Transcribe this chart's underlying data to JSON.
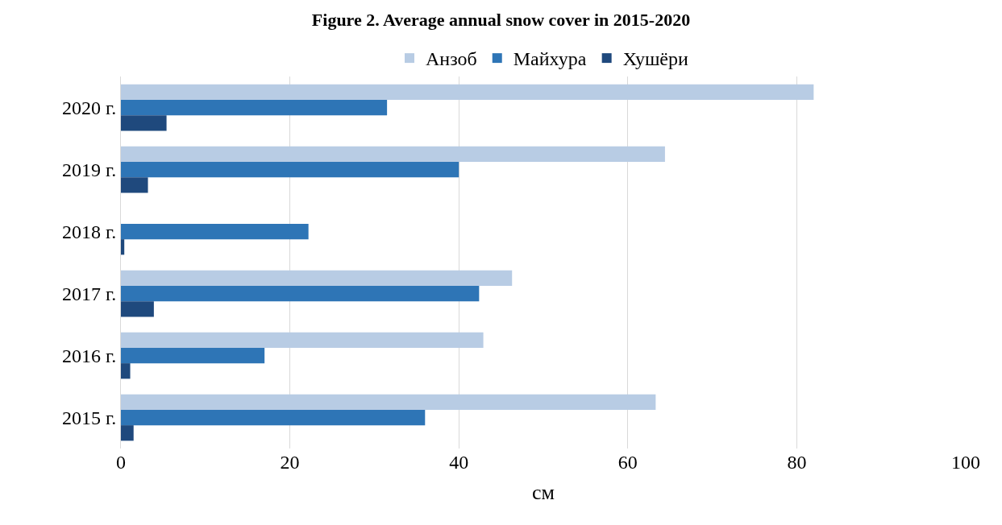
{
  "chart_data": {
    "type": "bar",
    "orientation": "horizontal",
    "title": "Figure 2. Average annual snow cover in 2015-2020",
    "xlabel": "см",
    "categories": [
      "2020 г.",
      "2019 г.",
      "2018 г.",
      "2017 г.",
      "2016 г.",
      "2015 г."
    ],
    "series": [
      {
        "name": "Анзоб",
        "color": "#b8cce4",
        "values": [
          82.0,
          64.4,
          null,
          46.3,
          42.9,
          63.3
        ]
      },
      {
        "name": "Майхура",
        "color": "#2e75b6",
        "values": [
          31.5,
          40.0,
          22.2,
          42.4,
          17.0,
          36.0
        ]
      },
      {
        "name": "Хушёри",
        "color": "#1f497d",
        "values": [
          5.4,
          3.2,
          0.4,
          3.9,
          1.1,
          1.5
        ]
      }
    ],
    "xlim": [
      0,
      100
    ],
    "xticks": [
      0,
      20,
      40,
      60,
      80,
      100
    ],
    "grid": "x",
    "legend": "top"
  }
}
